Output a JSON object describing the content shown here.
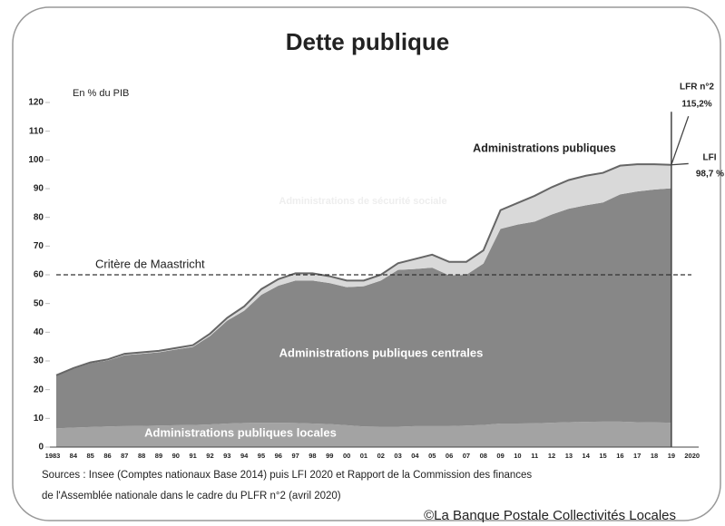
{
  "chart_data": {
    "type": "stacked_area",
    "title": "Dette publique",
    "unit_label": "En % du PIB",
    "categories": [
      "1983",
      "84",
      "85",
      "86",
      "87",
      "88",
      "89",
      "90",
      "91",
      "92",
      "93",
      "94",
      "95",
      "96",
      "97",
      "98",
      "99",
      "00",
      "01",
      "02",
      "03",
      "04",
      "05",
      "06",
      "07",
      "08",
      "09",
      "10",
      "11",
      "12",
      "13",
      "14",
      "15",
      "16",
      "17",
      "18",
      "19",
      "2020"
    ],
    "series": [
      {
        "name": "Administrations publiques locales",
        "color": "#a3a3a3",
        "values": [
          6.5,
          6.8,
          7,
          7.2,
          7.3,
          7.4,
          7.5,
          7.6,
          7.7,
          7.9,
          8.2,
          8.4,
          8.5,
          8.5,
          8.4,
          8.2,
          8,
          7.6,
          7.2,
          7.1,
          7.1,
          7.3,
          7.3,
          7.3,
          7.5,
          7.7,
          8.2,
          8.2,
          8.3,
          8.5,
          8.7,
          8.8,
          8.9,
          8.9,
          8.7,
          8.6,
          8.5,
          null
        ]
      },
      {
        "name": "Administrations publiques centrales",
        "color": "#878787",
        "values": [
          18.3,
          20.4,
          22.2,
          22.9,
          24.7,
          25.1,
          25.5,
          26.4,
          27.2,
          30.8,
          35.8,
          39.1,
          44.5,
          47.7,
          49.6,
          49.8,
          49.1,
          48.1,
          48.8,
          50.9,
          54.6,
          54.7,
          55.2,
          52.5,
          52.5,
          56.2,
          67.8,
          69.3,
          70.2,
          72.5,
          74.3,
          75.4,
          76.3,
          79.1,
          80.3,
          81.1,
          81.6,
          null
        ]
      },
      {
        "name": "Administrations de sécurité sociale",
        "color": "#d9d9d9",
        "values": [
          0.2,
          0.3,
          0.3,
          0.4,
          0.5,
          0.5,
          0.5,
          0.5,
          0.6,
          0.8,
          1,
          1.5,
          2,
          2.3,
          2.5,
          2.5,
          2.4,
          2.3,
          2,
          2,
          2.3,
          3.5,
          4.5,
          4.7,
          4.5,
          4.6,
          6.5,
          7.5,
          9,
          9.5,
          10,
          10.3,
          10.3,
          10,
          9.5,
          8.8,
          8.2,
          null
        ]
      }
    ],
    "total_label": "Administrations publiques",
    "total_color": "#666666",
    "reference_line": {
      "label": "Critère de Maastricht",
      "value": 60
    },
    "projections": [
      {
        "label": "LFR n°2",
        "value": 115.2,
        "value_label": "115,2%"
      },
      {
        "label": "LFI",
        "value": 98.7,
        "value_label": "98,7 %"
      }
    ],
    "ylim": [
      0,
      120
    ],
    "yticks": [
      0,
      10,
      20,
      30,
      40,
      50,
      60,
      70,
      80,
      90,
      100,
      110,
      120
    ],
    "sources": [
      "Sources : Insee (Comptes nationaux Base 2014) puis LFI 2020 et Rapport de la Commission des finances",
      "de l'Assemblée nationale dans le cadre du PLFR n°2 (avril 2020)"
    ],
    "credit": "©La Banque Postale Collectivités Locales"
  }
}
